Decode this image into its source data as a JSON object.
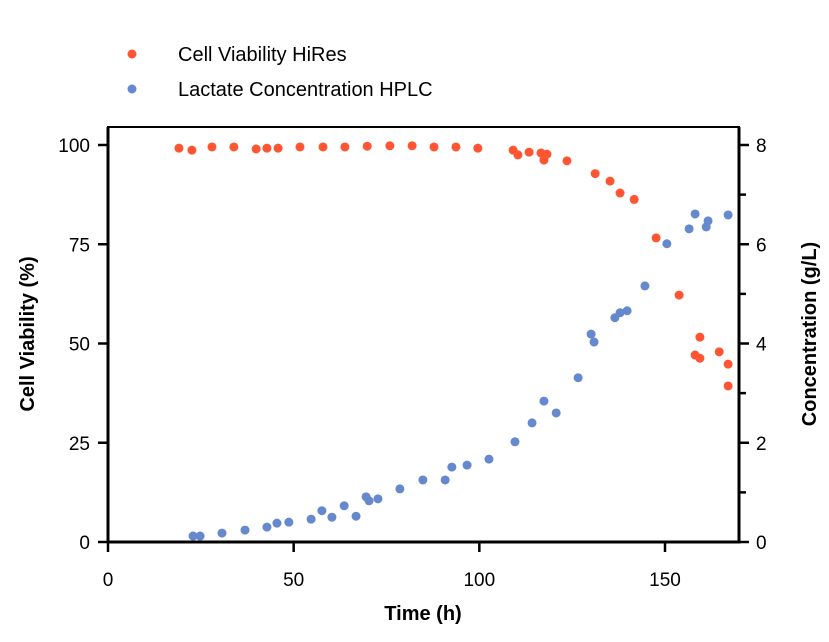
{
  "chart_data": {
    "type": "scatter",
    "title": "",
    "xlabel": "Time (h)",
    "ylabel": "Cell Viability (%)",
    "y2label": "Concentration (g/L)",
    "xlim": [
      0,
      170
    ],
    "ylim": [
      0,
      105
    ],
    "y2lim": [
      0,
      8.4
    ],
    "xticks": [
      0,
      50,
      100,
      150
    ],
    "yticks": [
      0,
      25,
      50,
      75,
      100
    ],
    "y2ticks": [
      0,
      2,
      4,
      6,
      8
    ],
    "grid": false,
    "legend_position": "top-left, above plot",
    "series": [
      {
        "name": "Cell Viability HiRes",
        "axis": "left",
        "color": "#ff5533",
        "x": [
          19.1,
          22.6,
          28.0,
          33.9,
          39.9,
          42.8,
          45.8,
          51.7,
          57.9,
          63.8,
          69.8,
          75.9,
          81.9,
          87.8,
          93.7,
          99.6,
          109.1,
          110.4,
          113.4,
          116.6,
          118.2,
          117.4,
          123.6,
          131.2,
          135.2,
          137.9,
          141.7,
          147.6,
          153.8,
          159.4,
          158.1,
          159.4,
          164.6,
          167.0,
          167.0
        ],
        "y": [
          99.2,
          98.7,
          99.5,
          99.5,
          99.0,
          99.2,
          99.2,
          99.5,
          99.5,
          99.5,
          99.7,
          99.8,
          99.8,
          99.5,
          99.5,
          99.2,
          98.7,
          97.5,
          98.2,
          98.0,
          97.7,
          96.2,
          96.0,
          92.8,
          90.9,
          87.9,
          86.3,
          76.6,
          62.2,
          51.6,
          47.1,
          46.3,
          47.9,
          44.8,
          39.3
        ]
      },
      {
        "name": "Lactate Concentration HPLC",
        "axis": "right",
        "color": "#6688cc",
        "x": [
          22.9,
          24.8,
          30.7,
          36.9,
          42.8,
          45.5,
          48.7,
          54.7,
          57.6,
          60.3,
          63.6,
          66.8,
          69.5,
          70.3,
          72.7,
          78.6,
          84.8,
          90.8,
          92.6,
          96.7,
          102.6,
          109.6,
          114.2,
          117.4,
          120.7,
          126.6,
          130.1,
          130.9,
          136.5,
          137.9,
          139.8,
          144.6,
          150.5,
          156.5,
          158.1,
          161.1,
          161.6,
          167.0
        ],
        "y": [
          0.12,
          0.12,
          0.18,
          0.24,
          0.3,
          0.38,
          0.4,
          0.46,
          0.63,
          0.5,
          0.73,
          0.52,
          0.91,
          0.83,
          0.87,
          1.07,
          1.25,
          1.25,
          1.51,
          1.55,
          1.67,
          2.02,
          2.4,
          2.84,
          2.6,
          3.31,
          4.19,
          4.03,
          4.52,
          4.62,
          4.66,
          5.16,
          6.01,
          6.31,
          6.61,
          6.35,
          6.47,
          6.59
        ]
      }
    ]
  }
}
